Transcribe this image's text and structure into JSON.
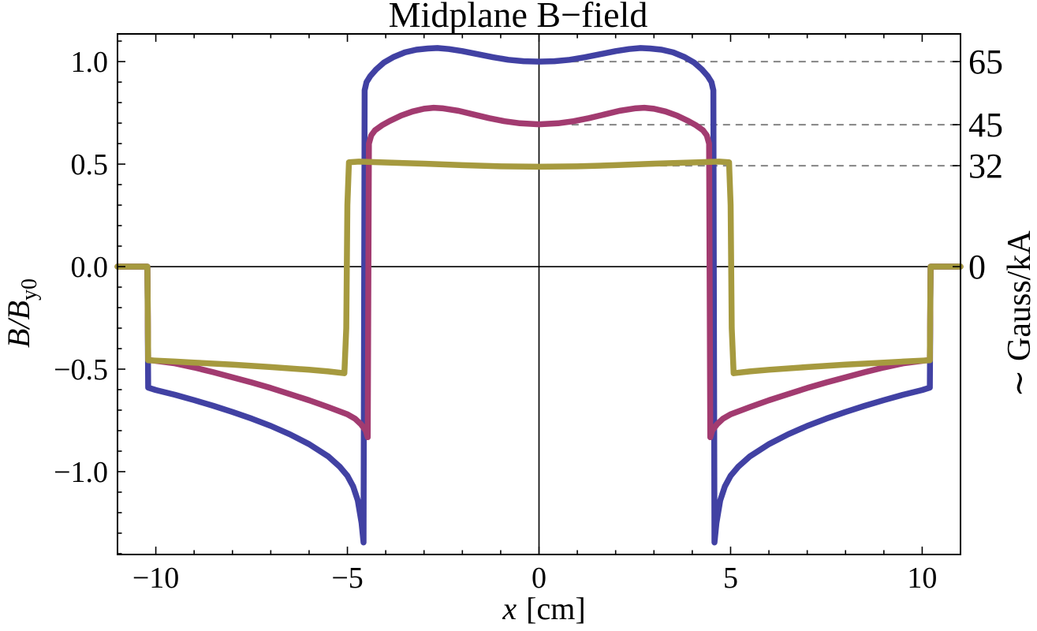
{
  "page": {
    "background": "#ffffff"
  },
  "chart_data": {
    "type": "line",
    "title": "Midplane B−field",
    "xlabel_var": "x",
    "xlabel_unit": "[cm]",
    "ylabel_left_main": "B/B",
    "ylabel_left_sub": "y0",
    "ylabel_right": "∼ Gauss/kA",
    "xlim": [
      -11,
      11
    ],
    "ylim": [
      -1.404,
      1.135
    ],
    "grid": false,
    "legend": "none",
    "frame_color": "#000000",
    "x_major_ticks": [
      {
        "v": -10,
        "label": "−10"
      },
      {
        "v": -5,
        "label": "−5"
      },
      {
        "v": 0,
        "label": "0"
      },
      {
        "v": 5,
        "label": "5"
      },
      {
        "v": 10,
        "label": "10"
      }
    ],
    "x_minor_step": 1,
    "y_major_ticks": [
      {
        "v": 1.0,
        "label": "1.0"
      },
      {
        "v": 0.5,
        "label": "0.5"
      },
      {
        "v": 0.0,
        "label": "0.0"
      },
      {
        "v": -0.5,
        "label": "−0.5"
      },
      {
        "v": -1.0,
        "label": "−1.0"
      }
    ],
    "y_minor_step": 0.1,
    "right_axis_ticks": [
      {
        "v": 1.0,
        "label": "65"
      },
      {
        "v": 0.6923,
        "label": "45"
      },
      {
        "v": 0.4923,
        "label": "32"
      },
      {
        "v": 0.0,
        "label": "0"
      }
    ],
    "reference_lines": {
      "color": "#848484",
      "dash": "9 7",
      "x_start": 0.85,
      "x_end": 11,
      "levels": [
        1.0,
        0.6923,
        0.4923
      ]
    },
    "origin_axes": true,
    "series": [
      {
        "name": "blue-curve",
        "color": "#4141A3",
        "width": 7.5,
        "points": [
          [
            -11,
            0
          ],
          [
            -10.22,
            0
          ],
          [
            -10.2,
            -0.59
          ],
          [
            -10,
            -0.602
          ],
          [
            -9.5,
            -0.625
          ],
          [
            -9,
            -0.651
          ],
          [
            -8.5,
            -0.679
          ],
          [
            -8,
            -0.709
          ],
          [
            -7.5,
            -0.741
          ],
          [
            -7,
            -0.777
          ],
          [
            -6.5,
            -0.818
          ],
          [
            -6,
            -0.866
          ],
          [
            -5.5,
            -0.926
          ],
          [
            -5.2,
            -0.976
          ],
          [
            -5,
            -1.02
          ],
          [
            -4.85,
            -1.072
          ],
          [
            -4.73,
            -1.14
          ],
          [
            -4.63,
            -1.25
          ],
          [
            -4.58,
            -1.345
          ],
          [
            -4.55,
            0.86
          ],
          [
            -4.5,
            0.9
          ],
          [
            -4.4,
            0.93
          ],
          [
            -4.25,
            0.962
          ],
          [
            -4.05,
            0.995
          ],
          [
            -3.8,
            1.022
          ],
          [
            -3.5,
            1.045
          ],
          [
            -3.2,
            1.058
          ],
          [
            -2.9,
            1.064
          ],
          [
            -2.65,
            1.066
          ],
          [
            -2.35,
            1.061
          ],
          [
            -2,
            1.051
          ],
          [
            -1.6,
            1.036
          ],
          [
            -1.2,
            1.021
          ],
          [
            -0.8,
            1.009
          ],
          [
            -0.4,
            1.002
          ],
          [
            0,
            1.0
          ],
          [
            0.4,
            1.002
          ],
          [
            0.8,
            1.009
          ],
          [
            1.2,
            1.021
          ],
          [
            1.6,
            1.036
          ],
          [
            2,
            1.051
          ],
          [
            2.35,
            1.061
          ],
          [
            2.65,
            1.066
          ],
          [
            2.9,
            1.064
          ],
          [
            3.2,
            1.058
          ],
          [
            3.5,
            1.045
          ],
          [
            3.8,
            1.022
          ],
          [
            4.05,
            0.995
          ],
          [
            4.25,
            0.962
          ],
          [
            4.4,
            0.93
          ],
          [
            4.5,
            0.9
          ],
          [
            4.55,
            0.86
          ],
          [
            4.58,
            -1.345
          ],
          [
            4.63,
            -1.25
          ],
          [
            4.73,
            -1.14
          ],
          [
            4.85,
            -1.072
          ],
          [
            5,
            -1.02
          ],
          [
            5.2,
            -0.976
          ],
          [
            5.5,
            -0.926
          ],
          [
            6,
            -0.866
          ],
          [
            6.5,
            -0.818
          ],
          [
            7,
            -0.777
          ],
          [
            7.5,
            -0.741
          ],
          [
            8,
            -0.709
          ],
          [
            8.5,
            -0.679
          ],
          [
            9,
            -0.651
          ],
          [
            9.5,
            -0.625
          ],
          [
            10,
            -0.602
          ],
          [
            10.2,
            -0.59
          ],
          [
            10.22,
            0
          ],
          [
            11,
            0
          ]
        ]
      },
      {
        "name": "magenta-curve",
        "color": "#A23B70",
        "width": 7.5,
        "points": [
          [
            -11,
            0
          ],
          [
            -10.22,
            0
          ],
          [
            -10.2,
            -0.455
          ],
          [
            -9.5,
            -0.472
          ],
          [
            -9,
            -0.492
          ],
          [
            -8.5,
            -0.515
          ],
          [
            -8,
            -0.54
          ],
          [
            -7.5,
            -0.565
          ],
          [
            -7,
            -0.592
          ],
          [
            -6.5,
            -0.622
          ],
          [
            -6,
            -0.652
          ],
          [
            -5.5,
            -0.685
          ],
          [
            -5,
            -0.72
          ],
          [
            -4.8,
            -0.742
          ],
          [
            -4.65,
            -0.768
          ],
          [
            -4.52,
            -0.8
          ],
          [
            -4.47,
            -0.832
          ],
          [
            -4.44,
            0.6
          ],
          [
            -4.38,
            0.64
          ],
          [
            -4.28,
            0.665
          ],
          [
            -4.1,
            0.689
          ],
          [
            -3.9,
            0.71
          ],
          [
            -3.6,
            0.737
          ],
          [
            -3.3,
            0.757
          ],
          [
            -3,
            0.77
          ],
          [
            -2.75,
            0.775
          ],
          [
            -2.5,
            0.772
          ],
          [
            -2.1,
            0.76
          ],
          [
            -1.7,
            0.742
          ],
          [
            -1.3,
            0.724
          ],
          [
            -0.9,
            0.709
          ],
          [
            -0.5,
            0.699
          ],
          [
            0,
            0.694
          ],
          [
            0.5,
            0.699
          ],
          [
            0.9,
            0.709
          ],
          [
            1.3,
            0.724
          ],
          [
            1.7,
            0.742
          ],
          [
            2.1,
            0.76
          ],
          [
            2.5,
            0.772
          ],
          [
            2.75,
            0.775
          ],
          [
            3,
            0.77
          ],
          [
            3.3,
            0.757
          ],
          [
            3.6,
            0.737
          ],
          [
            3.9,
            0.71
          ],
          [
            4.1,
            0.689
          ],
          [
            4.28,
            0.665
          ],
          [
            4.38,
            0.64
          ],
          [
            4.44,
            0.6
          ],
          [
            4.47,
            -0.832
          ],
          [
            4.52,
            -0.8
          ],
          [
            4.65,
            -0.768
          ],
          [
            4.8,
            -0.742
          ],
          [
            5,
            -0.72
          ],
          [
            5.5,
            -0.685
          ],
          [
            6,
            -0.652
          ],
          [
            6.5,
            -0.622
          ],
          [
            7,
            -0.592
          ],
          [
            7.5,
            -0.565
          ],
          [
            8,
            -0.54
          ],
          [
            8.5,
            -0.515
          ],
          [
            9,
            -0.492
          ],
          [
            9.5,
            -0.472
          ],
          [
            10.2,
            -0.455
          ],
          [
            10.22,
            0
          ],
          [
            11,
            0
          ]
        ]
      },
      {
        "name": "olive-curve",
        "color": "#A69A3F",
        "width": 7.5,
        "points": [
          [
            -11,
            0
          ],
          [
            -10.22,
            0
          ],
          [
            -10.2,
            -0.457
          ],
          [
            -9.5,
            -0.463
          ],
          [
            -9,
            -0.468
          ],
          [
            -8,
            -0.478
          ],
          [
            -7,
            -0.49
          ],
          [
            -6,
            -0.503
          ],
          [
            -5.5,
            -0.511
          ],
          [
            -5.08,
            -0.52
          ],
          [
            -5.03,
            -0.3
          ],
          [
            -5,
            0.3
          ],
          [
            -4.96,
            0.509
          ],
          [
            -4.7,
            0.512
          ],
          [
            -4,
            0.508
          ],
          [
            -3,
            0.502
          ],
          [
            -2,
            0.495
          ],
          [
            -1,
            0.489
          ],
          [
            0,
            0.487
          ],
          [
            1,
            0.489
          ],
          [
            2,
            0.495
          ],
          [
            3,
            0.502
          ],
          [
            4,
            0.508
          ],
          [
            4.7,
            0.512
          ],
          [
            4.96,
            0.509
          ],
          [
            5,
            0.3
          ],
          [
            5.03,
            -0.3
          ],
          [
            5.08,
            -0.52
          ],
          [
            5.5,
            -0.511
          ],
          [
            6,
            -0.503
          ],
          [
            7,
            -0.49
          ],
          [
            8,
            -0.478
          ],
          [
            9,
            -0.468
          ],
          [
            9.5,
            -0.463
          ],
          [
            10.2,
            -0.457
          ],
          [
            10.22,
            0
          ],
          [
            11,
            0
          ]
        ]
      }
    ]
  }
}
